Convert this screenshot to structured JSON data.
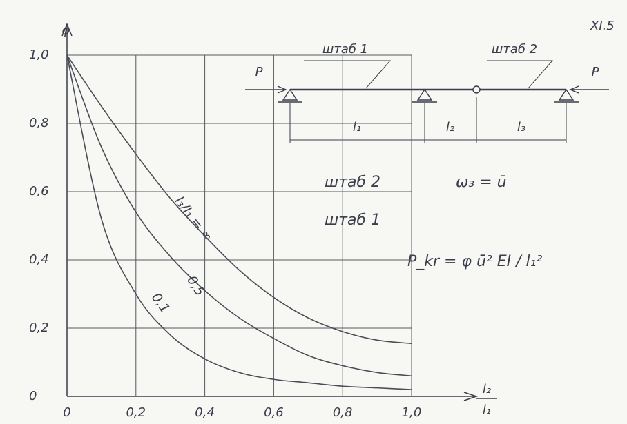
{
  "chart_data": {
    "type": "line",
    "page_label": "XI.5",
    "y_label": "φ",
    "x_label": {
      "numerator": "l₂",
      "denominator": "l₁"
    },
    "x": [
      0,
      0.1,
      0.2,
      0.3,
      0.4,
      0.5,
      0.6,
      0.7,
      0.8,
      0.9,
      1.0
    ],
    "series": [
      {
        "name": "l₃/l₁ = ∞",
        "color": "#4a4d58",
        "values": [
          1.0,
          0.85,
          0.71,
          0.58,
          0.47,
          0.37,
          0.29,
          0.23,
          0.19,
          0.165,
          0.155
        ]
      },
      {
        "name": "0,5",
        "color": "#4a4d58",
        "values": [
          1.0,
          0.73,
          0.54,
          0.41,
          0.31,
          0.23,
          0.17,
          0.12,
          0.09,
          0.07,
          0.06
        ]
      },
      {
        "name": "0,1",
        "color": "#4a4d58",
        "values": [
          1.0,
          0.52,
          0.3,
          0.18,
          0.11,
          0.07,
          0.05,
          0.04,
          0.03,
          0.025,
          0.02
        ]
      }
    ],
    "xlim": [
      0,
      1.0
    ],
    "ylim": [
      0,
      1.0
    ],
    "xticks": [
      0,
      {
        "value": 0.2,
        "label": "0,2"
      },
      {
        "value": 0.4,
        "label": "0,4"
      },
      {
        "value": 0.6,
        "label": "0,6"
      },
      {
        "value": 0.8,
        "label": "0,8"
      },
      {
        "value": 1.0,
        "label": "1,0"
      }
    ],
    "yticks": [
      0,
      {
        "value": 0.2,
        "label": "0,2"
      },
      {
        "value": 0.4,
        "label": "0,4"
      },
      {
        "value": 0.6,
        "label": "0,6"
      },
      {
        "value": 0.8,
        "label": "0,8"
      },
      {
        "value": 1.0,
        "label": "1,0"
      }
    ],
    "grid": true,
    "diagram": {
      "bar_1": "штаб 1",
      "bar_2": "штаб 2",
      "force_left": "P",
      "force_right": "P",
      "span_1": "l₁",
      "span_2": "l₂",
      "span_3": "l₃"
    },
    "annotations": [
      "штаб 2",
      "ω₃ = ū",
      "штаб 1",
      "P_kr = φ ū² EI / l₁²"
    ]
  }
}
